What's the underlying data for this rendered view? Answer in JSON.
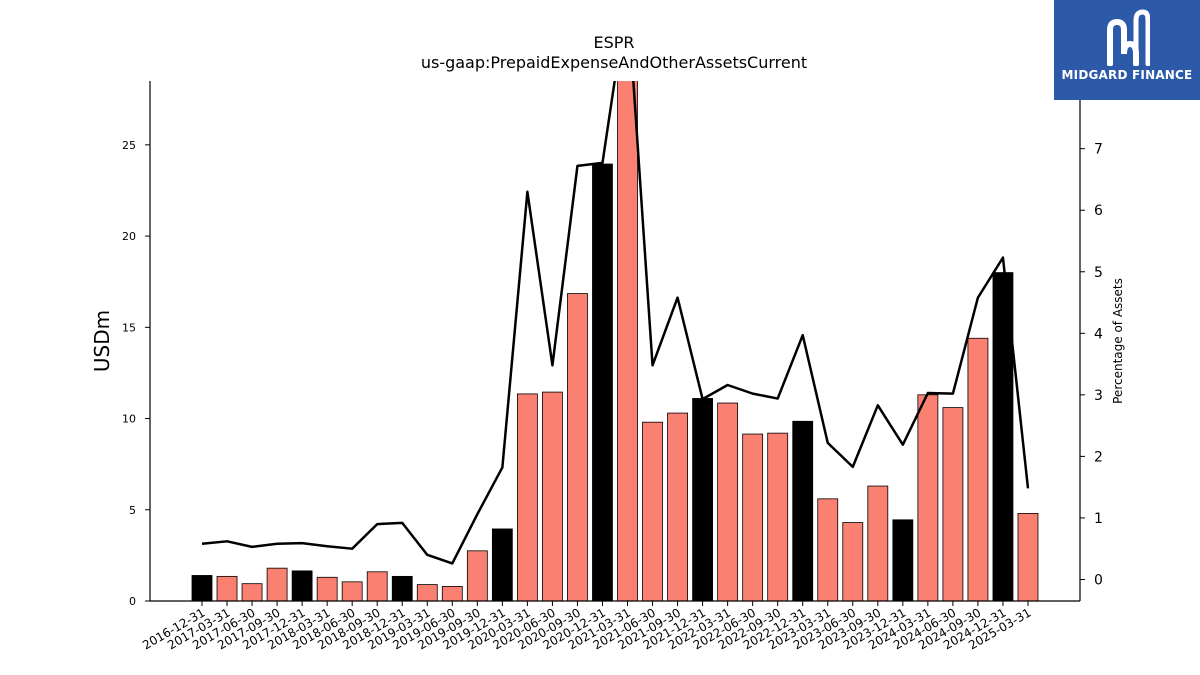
{
  "brand": {
    "name": "MIDGARD FINANCE",
    "background_color": "#2c5aa8",
    "icon": "midgard-logo-icon"
  },
  "chart_data": {
    "type": "bar",
    "title": "ESPR",
    "subtitle": "us-gaap:PrepaidExpenseAndOtherAssetsCurrent",
    "ylabel": "USDm",
    "y2label": "Percentage of Assets",
    "ylim": [
      0,
      28.5
    ],
    "y2lim": [
      -0.35,
      8.1
    ],
    "yticks": [
      0,
      5,
      10,
      15,
      20,
      25
    ],
    "y2ticks": [
      0,
      1,
      2,
      3,
      4,
      5,
      6,
      7
    ],
    "grid": false,
    "bar_colors": {
      "year_end": "#000000",
      "quarter": "#fa8072"
    },
    "line_color": "#000000",
    "categories": [
      "2016-12-31",
      "2017-03-31",
      "2017-06-30",
      "2017-09-30",
      "2017-12-31",
      "2018-03-31",
      "2018-06-30",
      "2018-09-30",
      "2018-12-31",
      "2019-03-31",
      "2019-06-30",
      "2019-09-30",
      "2019-12-31",
      "2020-03-31",
      "2020-06-30",
      "2020-09-30",
      "2020-12-31",
      "2021-03-31",
      "2021-06-30",
      "2021-09-30",
      "2021-12-31",
      "2022-03-31",
      "2022-06-30",
      "2022-09-30",
      "2022-12-31",
      "2023-03-31",
      "2023-06-30",
      "2023-09-30",
      "2023-12-31",
      "2024-03-31",
      "2024-06-30",
      "2024-09-30",
      "2024-12-31",
      "2025-03-31"
    ],
    "series": [
      {
        "kind": "bar",
        "values": [
          1.4,
          1.35,
          0.95,
          1.8,
          1.65,
          1.3,
          1.05,
          1.6,
          1.35,
          0.9,
          0.8,
          2.75,
          3.95,
          11.35,
          11.45,
          16.85,
          23.95,
          28.9,
          9.8,
          10.3,
          11.1,
          10.85,
          9.15,
          9.2,
          9.85,
          5.6,
          4.3,
          6.3,
          4.45,
          11.3,
          10.6,
          14.4,
          18.0,
          4.8
        ]
      },
      {
        "kind": "line",
        "axis": "right",
        "values": [
          0.58,
          0.62,
          0.53,
          0.58,
          0.59,
          0.54,
          0.5,
          0.9,
          0.92,
          0.4,
          0.26,
          1.06,
          1.82,
          6.3,
          3.48,
          6.72,
          6.77,
          9.5,
          3.48,
          4.58,
          2.93,
          3.16,
          3.02,
          2.94,
          3.97,
          2.22,
          1.83,
          2.83,
          2.19,
          3.03,
          3.02,
          4.58,
          5.23,
          1.48
        ]
      }
    ]
  }
}
